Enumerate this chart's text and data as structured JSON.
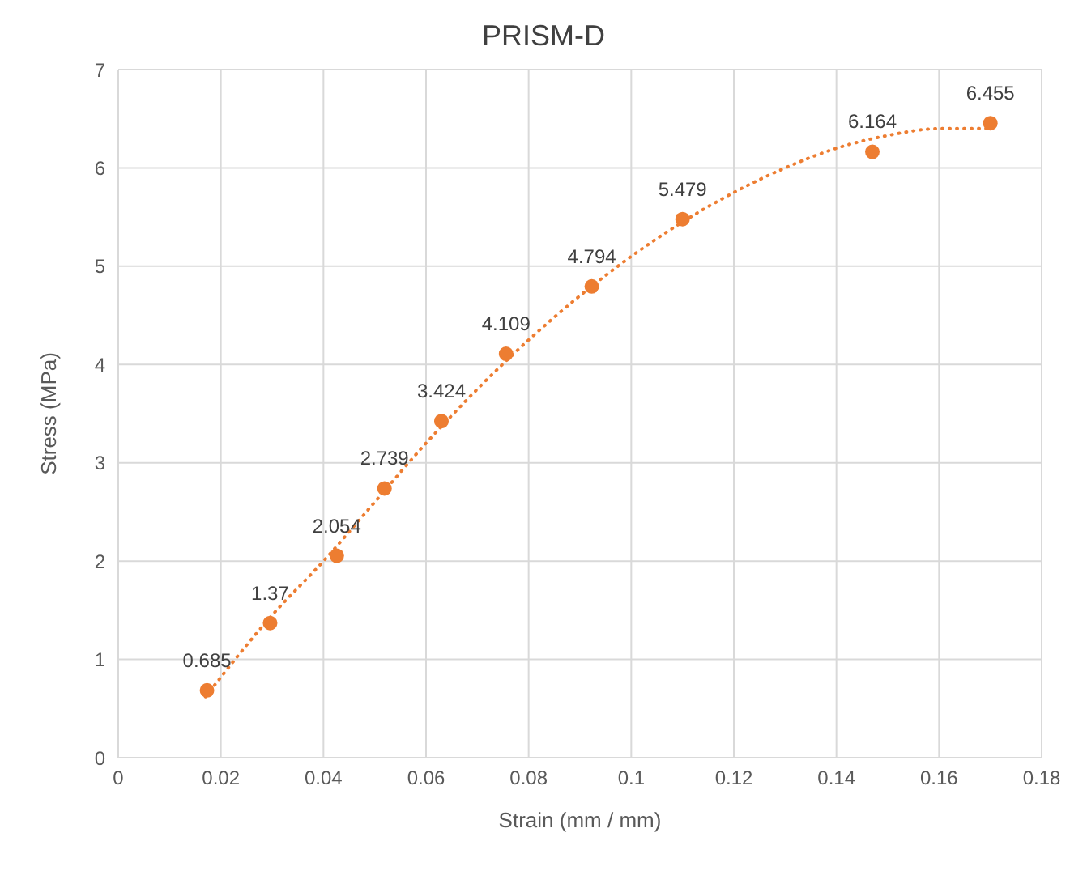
{
  "chart_data": {
    "type": "scatter",
    "title": "PRISM-D",
    "xlabel": "Strain (mm / mm)",
    "ylabel": "Stress (MPa)",
    "series": [
      {
        "color": "#ed7d31",
        "x": [
          0.0173,
          0.0296,
          0.0426,
          0.0519,
          0.063,
          0.0756,
          0.0923,
          0.11,
          0.147,
          0.17
        ],
        "values": [
          0.685,
          1.37,
          2.054,
          2.739,
          3.424,
          4.109,
          4.794,
          5.479,
          6.164,
          6.455
        ],
        "value_labels": [
          "0.685",
          "1.37",
          "2.054",
          "2.739",
          "3.424",
          "4.109",
          "4.794",
          "5.479",
          "6.164",
          "6.455"
        ]
      },
      {
        "type": "line",
        "color": "#ed7d31",
        "marker": "none",
        "line_style": "dotted",
        "x": [
          0.017,
          0.03,
          0.04,
          0.05,
          0.06,
          0.07,
          0.08,
          0.09,
          0.1,
          0.11,
          0.12,
          0.13,
          0.14,
          0.15,
          0.16,
          0.17
        ],
        "values": [
          0.62,
          1.45,
          2.0,
          2.6,
          3.2,
          3.75,
          4.25,
          4.7,
          5.1,
          5.45,
          5.75,
          6.0,
          6.2,
          6.33,
          6.4,
          6.4
        ]
      }
    ],
    "marker": "circle",
    "xlim": [
      0,
      0.18
    ],
    "xticks": [
      0,
      0.02,
      0.04,
      0.06,
      0.08,
      0.1,
      0.12,
      0.14,
      0.16,
      0.18
    ],
    "ylim": [
      0,
      7
    ],
    "yticks": [
      0,
      1,
      2,
      3,
      4,
      5,
      6,
      7
    ],
    "grid": true,
    "legend": false
  }
}
